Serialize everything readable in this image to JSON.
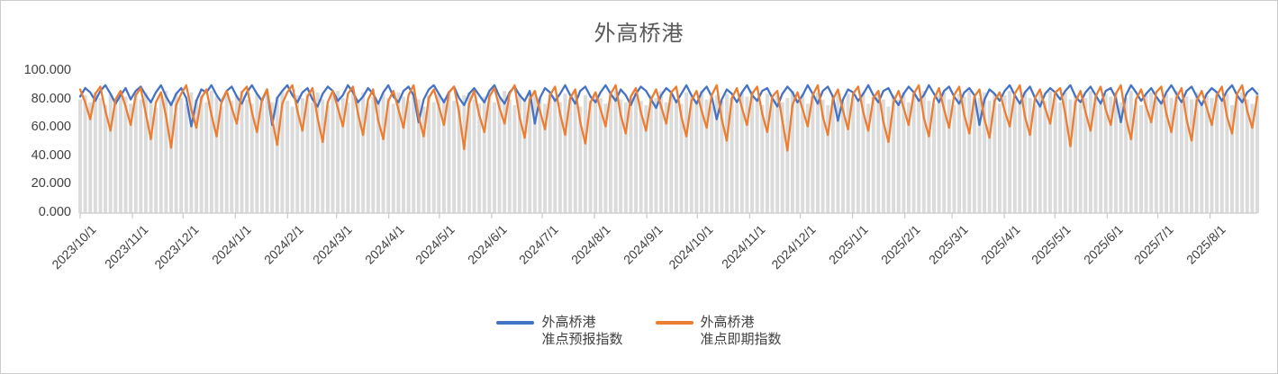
{
  "chart_data": {
    "type": "line+bar",
    "title": "外高桥港",
    "ylim": [
      0,
      100
    ],
    "y_tick_step": 20,
    "y_tick_labels": [
      "0.000",
      "20.000",
      "40.000",
      "60.000",
      "80.000",
      "100.000"
    ],
    "x_tick_labels": [
      "2023/10/1",
      "2023/11/1",
      "2023/12/1",
      "2024/1/1",
      "2024/2/1",
      "2024/3/1",
      "2024/4/1",
      "2024/5/1",
      "2024/6/1",
      "2024/7/1",
      "2024/8/1",
      "2024/9/1",
      "2024/10/1",
      "2024/11/1",
      "2024/12/1",
      "2025/1/1",
      "2025/2/1",
      "2025/3/1",
      "2025/4/1",
      "2025/5/1",
      "2025/6/1",
      "2025/7/1",
      "2025/8/1"
    ],
    "x_tick_day_offsets": [
      0,
      31,
      61,
      92,
      123,
      152,
      183,
      213,
      244,
      274,
      305,
      336,
      366,
      397,
      427,
      458,
      489,
      517,
      548,
      578,
      609,
      639,
      670
    ],
    "total_days": 698,
    "grid": "off",
    "legend_position": "bottom",
    "series": [
      {
        "name": "外高桥港准点预报指数",
        "type": "line",
        "color": "#4472C4",
        "values": [
          82,
          88,
          85,
          79,
          86,
          90,
          84,
          77,
          83,
          88,
          80,
          86,
          89,
          83,
          78,
          85,
          90,
          82,
          76,
          84,
          88,
          81,
          61,
          79,
          87,
          85,
          90,
          83,
          78,
          86,
          89,
          82,
          77,
          85,
          90,
          84,
          79,
          87,
          62,
          81,
          86,
          90,
          83,
          78,
          85,
          88,
          80,
          75,
          84,
          89,
          86,
          79,
          83,
          90,
          85,
          78,
          82,
          88,
          84,
          77,
          85,
          90,
          82,
          78,
          86,
          89,
          83,
          64,
          80,
          87,
          90,
          84,
          78,
          85,
          89,
          81,
          76,
          84,
          88,
          83,
          78,
          86,
          90,
          82,
          77,
          85,
          89,
          83,
          79,
          86,
          63,
          81,
          88,
          85,
          79,
          84,
          90,
          83,
          77,
          86,
          89,
          82,
          78,
          85,
          90,
          84,
          79,
          87,
          83,
          76,
          84,
          89,
          86,
          80,
          74,
          83,
          88,
          85,
          78,
          84,
          90,
          83,
          77,
          85,
          89,
          82,
          66,
          80,
          87,
          84,
          78,
          85,
          90,
          83,
          79,
          86,
          88,
          81,
          75,
          84,
          89,
          85,
          78,
          83,
          90,
          84,
          77,
          86,
          89,
          82,
          65,
          80,
          87,
          85,
          79,
          84,
          90,
          83,
          78,
          86,
          88,
          81,
          76,
          84,
          89,
          85,
          79,
          83,
          90,
          84,
          78,
          86,
          89,
          82,
          77,
          85,
          88,
          83,
          62,
          80,
          87,
          84,
          79,
          86,
          90,
          83,
          77,
          85,
          89,
          81,
          75,
          84,
          88,
          85,
          80,
          86,
          90,
          82,
          78,
          85,
          89,
          83,
          77,
          86,
          88,
          81,
          64,
          83,
          90,
          85,
          79,
          84,
          88,
          82,
          77,
          85,
          90,
          84,
          78,
          86,
          89,
          82,
          76,
          84,
          88,
          85,
          79,
          86,
          90,
          83,
          78,
          85,
          88,
          84
        ]
      },
      {
        "name": "外高桥港准点即期指数",
        "type": "line",
        "color": "#ED7D31",
        "values": [
          87,
          78,
          66,
          84,
          89,
          72,
          58,
          80,
          86,
          75,
          62,
          83,
          88,
          70,
          52,
          78,
          85,
          68,
          46,
          76,
          84,
          90,
          73,
          60,
          81,
          87,
          69,
          54,
          79,
          86,
          74,
          63,
          85,
          89,
          71,
          57,
          80,
          87,
          66,
          48,
          77,
          85,
          90,
          72,
          58,
          82,
          88,
          67,
          50,
          78,
          86,
          74,
          61,
          84,
          89,
          70,
          55,
          80,
          87,
          65,
          52,
          79,
          86,
          73,
          60,
          83,
          90,
          68,
          54,
          81,
          87,
          75,
          62,
          85,
          89,
          71,
          45,
          77,
          86,
          69,
          57,
          82,
          88,
          74,
          63,
          84,
          90,
          67,
          53,
          80,
          86,
          72,
          59,
          83,
          89,
          70,
          55,
          81,
          87,
          64,
          49,
          78,
          85,
          73,
          61,
          84,
          90,
          69,
          56,
          82,
          88,
          71,
          58,
          80,
          87,
          75,
          63,
          85,
          89,
          68,
          54,
          79,
          86,
          72,
          60,
          83,
          90,
          66,
          51,
          81,
          88,
          74,
          62,
          84,
          89,
          70,
          57,
          82,
          86,
          65,
          44,
          76,
          85,
          73,
          61,
          83,
          90,
          68,
          55,
          80,
          87,
          72,
          59,
          84,
          89,
          71,
          58,
          81,
          86,
          64,
          50,
          78,
          86,
          74,
          62,
          84,
          90,
          67,
          54,
          80,
          88,
          73,
          60,
          83,
          89,
          69,
          56,
          82,
          87,
          66,
          53,
          79,
          85,
          72,
          61,
          84,
          90,
          68,
          55,
          81,
          87,
          74,
          63,
          85,
          88,
          70,
          47,
          78,
          86,
          71,
          58,
          82,
          89,
          73,
          62,
          84,
          90,
          67,
          52,
          80,
          87,
          75,
          64,
          85,
          89,
          70,
          57,
          81,
          88,
          66,
          51,
          79,
          86,
          74,
          62,
          83,
          89,
          68,
          56,
          84,
          90,
          72,
          60,
          82
        ]
      },
      {
        "name": "background-bars",
        "type": "bar",
        "color": "#DBDBDB",
        "values": [
          80,
          83,
          78,
          85,
          81,
          76,
          84,
          79,
          86,
          82,
          77,
          83,
          80,
          85,
          78,
          74,
          82,
          86,
          79,
          84,
          81,
          77,
          85,
          80,
          83,
          78,
          86,
          82,
          75,
          84,
          79,
          83,
          86,
          80,
          77,
          84,
          81,
          85,
          78,
          82,
          86,
          79,
          75,
          83,
          81,
          84,
          78,
          85,
          80,
          76,
          83,
          86,
          81,
          78,
          84,
          80,
          85,
          77,
          82,
          79,
          84,
          81,
          77,
          85,
          82,
          79,
          86,
          80,
          75,
          83,
          78,
          84,
          81,
          86,
          79,
          76,
          83,
          85,
          80,
          77,
          82,
          85,
          78,
          81,
          86,
          80,
          76,
          84,
          79,
          83,
          86,
          81,
          77,
          85,
          82,
          78,
          84,
          80,
          86,
          75,
          83,
          79,
          85,
          81,
          77,
          84,
          86,
          80,
          78,
          82,
          85,
          79,
          76,
          83,
          81,
          86,
          78,
          84,
          80,
          77,
          85,
          82,
          78,
          86,
          80,
          75,
          83,
          79,
          84,
          81,
          77,
          85,
          82,
          86,
          79,
          76,
          84,
          80,
          83,
          78,
          81,
          86,
          79,
          84,
          77,
          82,
          85,
          80,
          76,
          83,
          86,
          78,
          84,
          81,
          79,
          85,
          77,
          82,
          86,
          80,
          75,
          83,
          80,
          85,
          78,
          84,
          81,
          86,
          79,
          77,
          83,
          85,
          80,
          76,
          84,
          82,
          86,
          78,
          81,
          85,
          79,
          84,
          77,
          83,
          86,
          80,
          78,
          85,
          81,
          76,
          84,
          79,
          86,
          82,
          78,
          85,
          80,
          83,
          77,
          81,
          86,
          80,
          77,
          84,
          82,
          85,
          78,
          81,
          86,
          79,
          76,
          83,
          85,
          80,
          78,
          84,
          81,
          86,
          77,
          82,
          80,
          85,
          78,
          83,
          81,
          86,
          79,
          84,
          76,
          82,
          85,
          80,
          77,
          84
        ]
      }
    ]
  },
  "legend": {
    "items": [
      {
        "line1": "外高桥港",
        "line2": "准点预报指数",
        "color": "#4472C4"
      },
      {
        "line1": "外高桥港",
        "line2": "准点即期指数",
        "color": "#ED7D31"
      }
    ]
  },
  "colors": {
    "axis_line": "#c9c9c9",
    "tick_mark": "#c9c9c9",
    "title_text": "#595959",
    "axis_label_text": "#404040"
  }
}
